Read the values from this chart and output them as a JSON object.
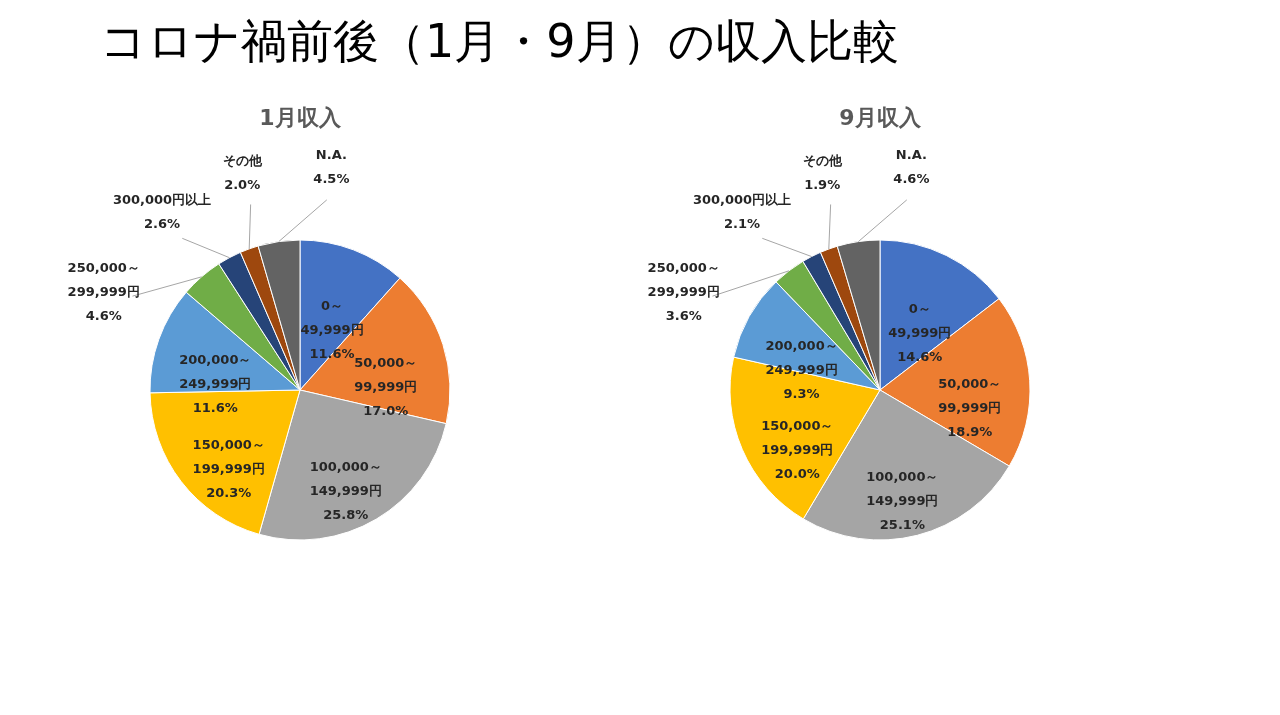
{
  "chart_data": [
    {
      "type": "pie",
      "title": "コロナ禍前後（1月・9月）の収入比較",
      "subtitle": "1月収入",
      "categories": [
        "0～49,999円",
        "50,000～99,999円",
        "100,000～149,999円",
        "150,000～199,999円",
        "200,000～249,999円",
        "250,000～299,999円",
        "300,000円以上",
        "その他",
        "N.A."
      ],
      "values": [
        11.6,
        17.0,
        25.8,
        20.3,
        11.6,
        4.6,
        2.6,
        2.0,
        4.5
      ],
      "value_labels": [
        "11.6%",
        "17.0%",
        "25.8%",
        "20.3%",
        "11.6%",
        "4.6%",
        "2.6%",
        "2.0%",
        "4.5%"
      ],
      "colors": [
        "#4472c4",
        "#ed7d31",
        "#a5a5a5",
        "#ffc000",
        "#5b9bd5",
        "#70ad47",
        "#264478",
        "#9e480e",
        "#636363"
      ]
    },
    {
      "type": "pie",
      "subtitle": "9月収入",
      "categories": [
        "0～49,999円",
        "50,000～99,999円",
        "100,000～149,999円",
        "150,000～199,999円",
        "200,000～249,999円",
        "250,000～299,999円",
        "300,000円以上",
        "その他",
        "N.A."
      ],
      "values": [
        14.6,
        18.9,
        25.1,
        20.0,
        9.3,
        3.6,
        2.1,
        1.9,
        4.6
      ],
      "value_labels": [
        "14.6%",
        "18.9%",
        "25.1%",
        "20.0%",
        "9.3%",
        "3.6%",
        "2.1%",
        "1.9%",
        "4.6%"
      ],
      "colors": [
        "#4472c4",
        "#ed7d31",
        "#a5a5a5",
        "#ffc000",
        "#5b9bd5",
        "#70ad47",
        "#264478",
        "#9e480e",
        "#636363"
      ]
    }
  ]
}
